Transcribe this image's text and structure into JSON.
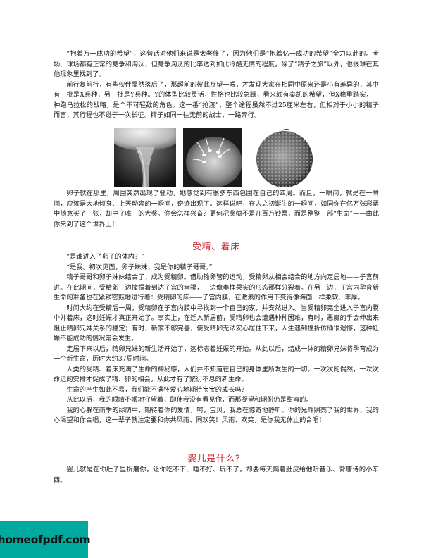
{
  "section1": {
    "paragraphs": [
      "“抱着万一成功的希望”，这句话对他们来说是太奢侈了，因为他们是“抱着亿一成功的希望”全力以赴的。考场、球场都有正常的竞争和淘汰，但竞争淘汰的比率达到如此冷酷无情的程度，除了“精子之旅”以外，也很难在其他现象里找到了。",
      "前行复前行，有些伙伴显然落后了，那超前的彼此互望一眼，才发现大家在相同中原来还是小有差异的，其中有一批是X兵种，另一批是Y兵种。Y的体型比较灵活，性格也比较急躁，看来颇有泰凯的希望，但X稳重踏实，一种跑马拉松的战略，是个不可轻敌的角色。这一番“抢渡”，整个途程虽然不过25厘米左右，但相对于小小的精子而言，其行程也不逊于一次长征。精子如同一往无前的战士，一路奔行。"
    ]
  },
  "section2": {
    "paragraphs": [
      "卵子就在那里，周围突然出现了骚动，她感觉到有很多东西包围在自己的四周。而且，一瞬间，就是在一瞬间，应该是大地倾身、上天动容的一瞬间，奇迹出现了。这样说吧，在人之初诞生的一瞬间，如同你在亿万张彩票中随意买了一张，却中了唯一的大奖。你会怎样兴奋？更何况奖额不是几百万钞票，而是整整一部“生命”——由此你来到了这个世界上！"
    ]
  },
  "heading1": "受精、着床",
  "section3": {
    "paragraphs": [
      "“是谁进入了卵子的体内？”",
      "“是我。初次见面，卵子妹妹，我是你的精子哥哥。”",
      "精子哥哥和卵子妹妹结合了，成为受精卵。借助输卵管的运动，受精卵从相会结合的地方向定居地——子宫前进。在此期间，受精卵一边憧憬着到达子宫的幸福，一边像奏样果实的形态那样分裂着。在另一边，子宫内孕育新生命的准备也在紧锣密鼓地进行着：受精卵的床——子宫内膜，在激素的作用下变得像海面一样柔软、丰厚。",
      "时间大约在受精后一周，受精卵在子宫内膜中寻找到一个自己的家，并安然进入。当受精卵完全进入子宫内膜中并着床，这时妊娠才真正开始了。事实上，在迁入新居前，受精卵也会遭遇种种困难，有时，恶魔的手会伸出来阻止精卵兄妹关系的稳定；有时，新家不够完善，使受精卵无法安心居住下来，人生遇到挫折仿确很遗憾，这种妊娠不能成功的情况常会发生。",
      "定居下来以后，精卵兄妹的新生活开始了，这标志着妊娠的开始。从此以后，结成一体的精卵兄妹将孕育成为一个新生命，历时大约37周时间。",
      "人类的受精、着床充满了生命的神秘感，人们并不知道在自己的身体里所发生的一切。一次次的偶然，一次次命运的安排才促成了精、卵的相会，从此才有了繁衍不息的新生命。",
      "生命的产生如此不易，我们能不满怀爱心地期待宝宝的成长吗？",
      "从此以后，我的眼睛不眠地守望着，即使我没有看见你，而那凝望和期盼仍是甜蜜的。",
      "我的心躲在雨季的绿荫中，期待着你的爱情，呵，宝贝，我总在惊奇地静听。你的光辉照亮了我的世界，我的心渴望和你合唱，这一辈子就注定要和你共风雨、同欢笑！风雨、欢笑，是你我无休止的合唱！"
    ]
  },
  "heading2": "婴儿是什么？",
  "section4": {
    "paragraphs": [
      "婴儿就是在你肚子里折磨你，让你吃不下、睡不好、玩不了，却要每天隔着肚皮给他听音乐、背唐诗的小东西。"
    ]
  },
  "watermark": {
    "text": "homeofpdf.com"
  },
  "colors": {
    "heading": "#c8202a",
    "watermark_bg": "#00a99d"
  }
}
